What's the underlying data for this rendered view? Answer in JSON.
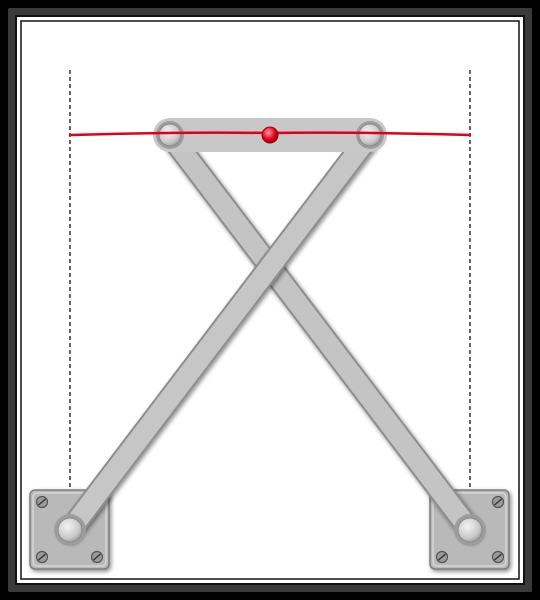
{
  "mechanism": {
    "name": "",
    "colors": {
      "frame_outer": "#000000",
      "frame_border": "#2a2a2a",
      "canvas": "#ffffff",
      "link_fill": "#c2c2c2",
      "link_stroke": "#8e8e8e",
      "mount_fill": "#b8b8b8",
      "screw": "#6a6a6a",
      "trace_path": "#e0001a",
      "tracer_point": "#e00018",
      "guide_lines": "#000000"
    },
    "components": [
      {
        "id": "ground-left",
        "label": "",
        "type": "fixed-pivot",
        "screws": 3
      },
      {
        "id": "ground-right",
        "label": "",
        "type": "fixed-pivot",
        "screws": 3
      },
      {
        "id": "crank-left",
        "label": "",
        "type": "crossed-link"
      },
      {
        "id": "crank-right",
        "label": "",
        "type": "crossed-link"
      },
      {
        "id": "coupler",
        "label": "",
        "type": "top-link",
        "has_tracer_point": true
      }
    ],
    "trace": {
      "description": "",
      "shape": "approximate straight line"
    },
    "guides": {
      "style": "dashed",
      "count": 2
    }
  }
}
